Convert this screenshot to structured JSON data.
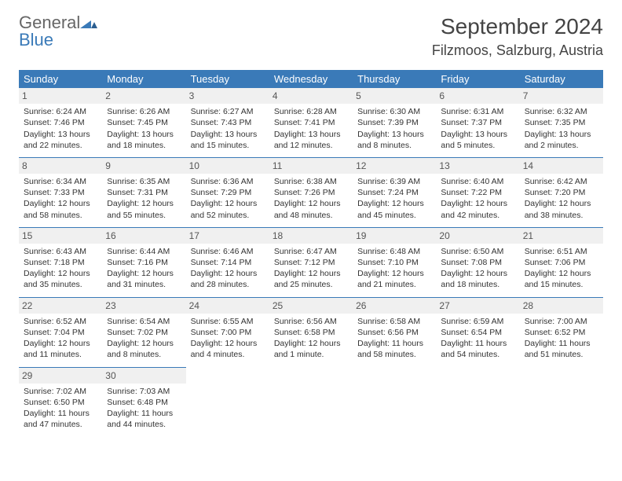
{
  "brand": {
    "line1": "General",
    "line2": "Blue"
  },
  "title": "September 2024",
  "location": "Filzmoos, Salzburg, Austria",
  "colors": {
    "header_bg": "#3a7ab8",
    "header_fg": "#ffffff",
    "daynum_bg": "#f0f0f0",
    "border": "#3a7ab8",
    "text": "#333333",
    "brand_gray": "#666666",
    "brand_blue": "#3a7ab8"
  },
  "weekdays": [
    "Sunday",
    "Monday",
    "Tuesday",
    "Wednesday",
    "Thursday",
    "Friday",
    "Saturday"
  ],
  "weeks": [
    [
      {
        "n": "1",
        "sr": "Sunrise: 6:24 AM",
        "ss": "Sunset: 7:46 PM",
        "d1": "Daylight: 13 hours",
        "d2": "and 22 minutes."
      },
      {
        "n": "2",
        "sr": "Sunrise: 6:26 AM",
        "ss": "Sunset: 7:45 PM",
        "d1": "Daylight: 13 hours",
        "d2": "and 18 minutes."
      },
      {
        "n": "3",
        "sr": "Sunrise: 6:27 AM",
        "ss": "Sunset: 7:43 PM",
        "d1": "Daylight: 13 hours",
        "d2": "and 15 minutes."
      },
      {
        "n": "4",
        "sr": "Sunrise: 6:28 AM",
        "ss": "Sunset: 7:41 PM",
        "d1": "Daylight: 13 hours",
        "d2": "and 12 minutes."
      },
      {
        "n": "5",
        "sr": "Sunrise: 6:30 AM",
        "ss": "Sunset: 7:39 PM",
        "d1": "Daylight: 13 hours",
        "d2": "and 8 minutes."
      },
      {
        "n": "6",
        "sr": "Sunrise: 6:31 AM",
        "ss": "Sunset: 7:37 PM",
        "d1": "Daylight: 13 hours",
        "d2": "and 5 minutes."
      },
      {
        "n": "7",
        "sr": "Sunrise: 6:32 AM",
        "ss": "Sunset: 7:35 PM",
        "d1": "Daylight: 13 hours",
        "d2": "and 2 minutes."
      }
    ],
    [
      {
        "n": "8",
        "sr": "Sunrise: 6:34 AM",
        "ss": "Sunset: 7:33 PM",
        "d1": "Daylight: 12 hours",
        "d2": "and 58 minutes."
      },
      {
        "n": "9",
        "sr": "Sunrise: 6:35 AM",
        "ss": "Sunset: 7:31 PM",
        "d1": "Daylight: 12 hours",
        "d2": "and 55 minutes."
      },
      {
        "n": "10",
        "sr": "Sunrise: 6:36 AM",
        "ss": "Sunset: 7:29 PM",
        "d1": "Daylight: 12 hours",
        "d2": "and 52 minutes."
      },
      {
        "n": "11",
        "sr": "Sunrise: 6:38 AM",
        "ss": "Sunset: 7:26 PM",
        "d1": "Daylight: 12 hours",
        "d2": "and 48 minutes."
      },
      {
        "n": "12",
        "sr": "Sunrise: 6:39 AM",
        "ss": "Sunset: 7:24 PM",
        "d1": "Daylight: 12 hours",
        "d2": "and 45 minutes."
      },
      {
        "n": "13",
        "sr": "Sunrise: 6:40 AM",
        "ss": "Sunset: 7:22 PM",
        "d1": "Daylight: 12 hours",
        "d2": "and 42 minutes."
      },
      {
        "n": "14",
        "sr": "Sunrise: 6:42 AM",
        "ss": "Sunset: 7:20 PM",
        "d1": "Daylight: 12 hours",
        "d2": "and 38 minutes."
      }
    ],
    [
      {
        "n": "15",
        "sr": "Sunrise: 6:43 AM",
        "ss": "Sunset: 7:18 PM",
        "d1": "Daylight: 12 hours",
        "d2": "and 35 minutes."
      },
      {
        "n": "16",
        "sr": "Sunrise: 6:44 AM",
        "ss": "Sunset: 7:16 PM",
        "d1": "Daylight: 12 hours",
        "d2": "and 31 minutes."
      },
      {
        "n": "17",
        "sr": "Sunrise: 6:46 AM",
        "ss": "Sunset: 7:14 PM",
        "d1": "Daylight: 12 hours",
        "d2": "and 28 minutes."
      },
      {
        "n": "18",
        "sr": "Sunrise: 6:47 AM",
        "ss": "Sunset: 7:12 PM",
        "d1": "Daylight: 12 hours",
        "d2": "and 25 minutes."
      },
      {
        "n": "19",
        "sr": "Sunrise: 6:48 AM",
        "ss": "Sunset: 7:10 PM",
        "d1": "Daylight: 12 hours",
        "d2": "and 21 minutes."
      },
      {
        "n": "20",
        "sr": "Sunrise: 6:50 AM",
        "ss": "Sunset: 7:08 PM",
        "d1": "Daylight: 12 hours",
        "d2": "and 18 minutes."
      },
      {
        "n": "21",
        "sr": "Sunrise: 6:51 AM",
        "ss": "Sunset: 7:06 PM",
        "d1": "Daylight: 12 hours",
        "d2": "and 15 minutes."
      }
    ],
    [
      {
        "n": "22",
        "sr": "Sunrise: 6:52 AM",
        "ss": "Sunset: 7:04 PM",
        "d1": "Daylight: 12 hours",
        "d2": "and 11 minutes."
      },
      {
        "n": "23",
        "sr": "Sunrise: 6:54 AM",
        "ss": "Sunset: 7:02 PM",
        "d1": "Daylight: 12 hours",
        "d2": "and 8 minutes."
      },
      {
        "n": "24",
        "sr": "Sunrise: 6:55 AM",
        "ss": "Sunset: 7:00 PM",
        "d1": "Daylight: 12 hours",
        "d2": "and 4 minutes."
      },
      {
        "n": "25",
        "sr": "Sunrise: 6:56 AM",
        "ss": "Sunset: 6:58 PM",
        "d1": "Daylight: 12 hours",
        "d2": "and 1 minute."
      },
      {
        "n": "26",
        "sr": "Sunrise: 6:58 AM",
        "ss": "Sunset: 6:56 PM",
        "d1": "Daylight: 11 hours",
        "d2": "and 58 minutes."
      },
      {
        "n": "27",
        "sr": "Sunrise: 6:59 AM",
        "ss": "Sunset: 6:54 PM",
        "d1": "Daylight: 11 hours",
        "d2": "and 54 minutes."
      },
      {
        "n": "28",
        "sr": "Sunrise: 7:00 AM",
        "ss": "Sunset: 6:52 PM",
        "d1": "Daylight: 11 hours",
        "d2": "and 51 minutes."
      }
    ],
    [
      {
        "n": "29",
        "sr": "Sunrise: 7:02 AM",
        "ss": "Sunset: 6:50 PM",
        "d1": "Daylight: 11 hours",
        "d2": "and 47 minutes."
      },
      {
        "n": "30",
        "sr": "Sunrise: 7:03 AM",
        "ss": "Sunset: 6:48 PM",
        "d1": "Daylight: 11 hours",
        "d2": "and 44 minutes."
      },
      null,
      null,
      null,
      null,
      null
    ]
  ]
}
